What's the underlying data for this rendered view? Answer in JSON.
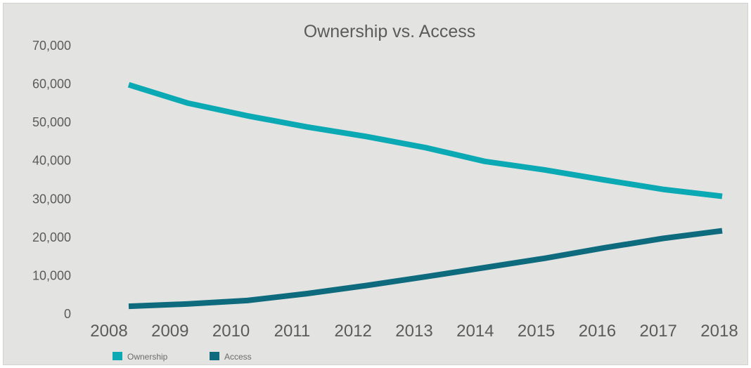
{
  "chart_data": {
    "type": "line",
    "title": "Ownership vs. Access",
    "xlabel": "",
    "ylabel": "",
    "x": [
      "2008",
      "2009",
      "2010",
      "2011",
      "2012",
      "2013",
      "2014",
      "2015",
      "2016",
      "2017",
      "2018"
    ],
    "yticks": [
      "0",
      "10,000",
      "20,000",
      "30,000",
      "40,000",
      "50,000",
      "60,000",
      "70,000"
    ],
    "ylim": [
      0,
      70000
    ],
    "grid": false,
    "legend_position": "bottom-left",
    "series": [
      {
        "name": "Ownership",
        "color": "#0aa9b3",
        "values": [
          59800,
          55000,
          51700,
          48800,
          46300,
          43400,
          39800,
          37600,
          35000,
          32500,
          30700
        ]
      },
      {
        "name": "Access",
        "color": "#0e6a7d",
        "values": [
          2000,
          2600,
          3500,
          5300,
          7400,
          9700,
          12100,
          14500,
          17200,
          19700,
          21700
        ]
      }
    ]
  }
}
